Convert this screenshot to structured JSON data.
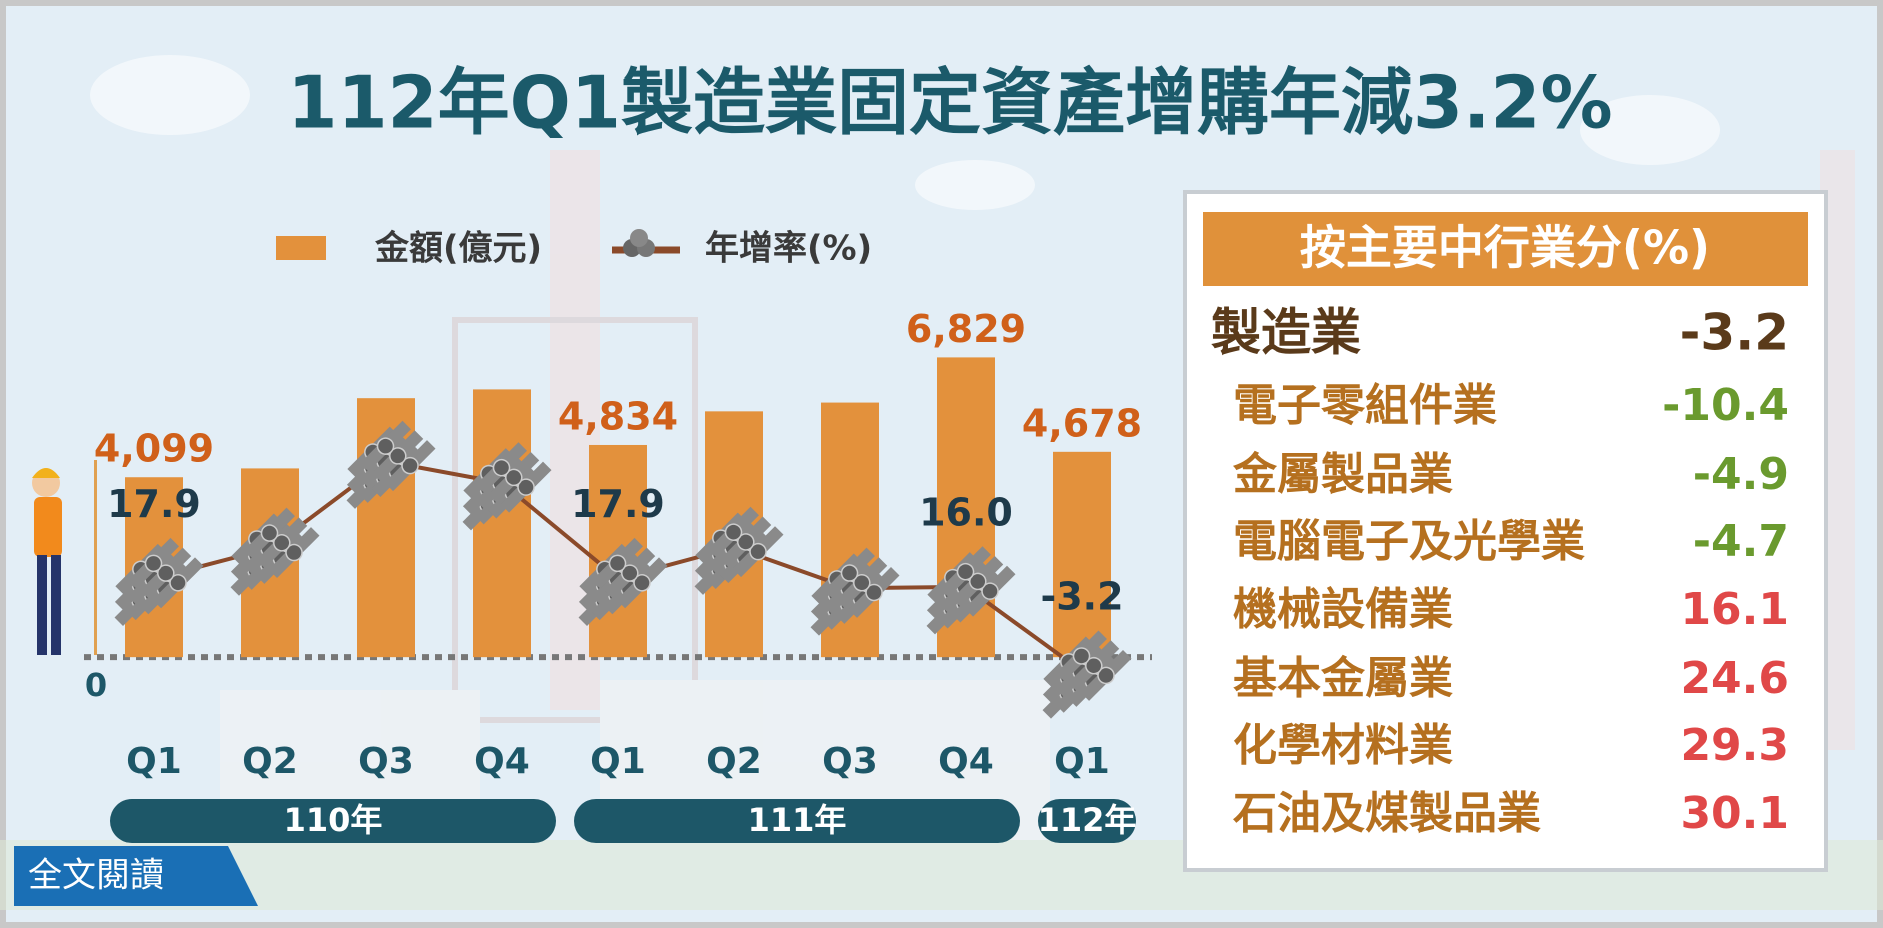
{
  "chart_data": {
    "type": "bar",
    "title": "112年Q1製造業固定資產增購年減3.2%",
    "categories": [
      "Q1",
      "Q2",
      "Q3",
      "Q4",
      "Q1",
      "Q2",
      "Q3",
      "Q4",
      "Q1"
    ],
    "x_groups": [
      {
        "label": "110年",
        "span": 4
      },
      {
        "label": "111年",
        "span": 4
      },
      {
        "label": "112年",
        "span": 1
      }
    ],
    "series": [
      {
        "name": "金額(億元)",
        "type": "bar",
        "color": "#e3913c",
        "values": [
          4099,
          4300,
          5900,
          6100,
          4834,
          5600,
          5800,
          6829,
          4678
        ],
        "value_labels": [
          "4,099",
          null,
          null,
          null,
          "4,834",
          null,
          null,
          "6,829",
          "4,678"
        ]
      },
      {
        "name": "年增率(%)",
        "type": "line",
        "axis": "y2",
        "color": "#8b4a2a",
        "values": [
          17.9,
          24.8,
          44.6,
          39.7,
          17.9,
          25.0,
          15.7,
          16.0,
          -3.2
        ],
        "value_labels": [
          "17.9",
          null,
          null,
          null,
          "17.9",
          null,
          null,
          "16.0",
          "-3.2"
        ]
      }
    ],
    "ylim": [
      -1500,
      8000
    ],
    "yticks": [
      0
    ],
    "y2lim": [
      -15,
      80
    ]
  },
  "panel": {
    "title": "按主要中行業分(%)",
    "negative_color": "#6a9a2e",
    "positive_color": "#e04848",
    "rows": [
      {
        "name": "製造業",
        "value": -3.2
      },
      {
        "name": "電子零組件業",
        "value": -10.4
      },
      {
        "name": "金屬製品業",
        "value": -4.9
      },
      {
        "name": "電腦電子及光學業",
        "value": -4.7
      },
      {
        "name": "機械設備業",
        "value": 16.1
      },
      {
        "name": "基本金屬業",
        "value": 24.6
      },
      {
        "name": "化學材料業",
        "value": 29.3
      },
      {
        "name": "石油及煤製品業",
        "value": 30.1
      }
    ]
  },
  "button": {
    "label": "全文閱讀"
  }
}
